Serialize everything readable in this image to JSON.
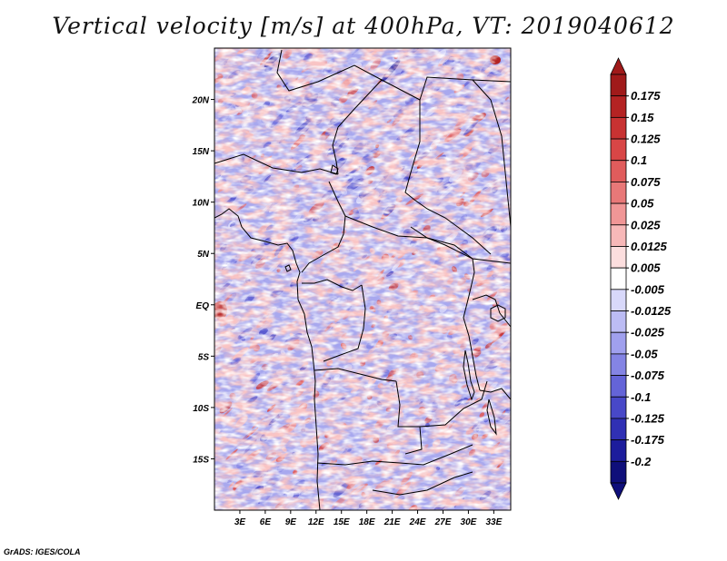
{
  "title": "Vertical velocity [m/s] at 400hPa, VT: 2019040612",
  "credit": "GrADS: IGES/COLA",
  "chart_data": {
    "type": "heatmap",
    "variable": "Vertical velocity",
    "units": "m/s",
    "level": "400hPa",
    "valid_time": "2019040612",
    "lon_range": [
      0,
      35
    ],
    "lat_range": [
      -20,
      25
    ],
    "x_ticks": [
      {
        "value": 3,
        "label": "3E"
      },
      {
        "value": 6,
        "label": "6E"
      },
      {
        "value": 9,
        "label": "9E"
      },
      {
        "value": 12,
        "label": "12E"
      },
      {
        "value": 15,
        "label": "15E"
      },
      {
        "value": 18,
        "label": "18E"
      },
      {
        "value": 21,
        "label": "21E"
      },
      {
        "value": 24,
        "label": "24E"
      },
      {
        "value": 27,
        "label": "27E"
      },
      {
        "value": 30,
        "label": "30E"
      },
      {
        "value": 33,
        "label": "33E"
      }
    ],
    "y_ticks": [
      {
        "value": 20,
        "label": "20N"
      },
      {
        "value": 15,
        "label": "15N"
      },
      {
        "value": 10,
        "label": "10N"
      },
      {
        "value": 5,
        "label": "5N"
      },
      {
        "value": 0,
        "label": "EQ"
      },
      {
        "value": -5,
        "label": "5S"
      },
      {
        "value": -10,
        "label": "10S"
      },
      {
        "value": -15,
        "label": "15S"
      }
    ],
    "colorbar": {
      "labels": [
        "0.175",
        "0.15",
        "0.125",
        "0.1",
        "0.075",
        "0.05",
        "0.025",
        "0.0125",
        "0.005",
        "-0.005",
        "-0.0125",
        "-0.025",
        "-0.05",
        "-0.075",
        "-0.1",
        "-0.125",
        "-0.175",
        "-0.2"
      ],
      "colors": [
        "#a01a1a",
        "#b42323",
        "#c83232",
        "#d84646",
        "#e05c5c",
        "#e87878",
        "#f09696",
        "#f7b8b8",
        "#fcdede",
        "#ffffff",
        "#d8d8fa",
        "#bcbcf4",
        "#a0a0ee",
        "#8484e4",
        "#6464d8",
        "#4848c8",
        "#3030b4",
        "#1c1c9c",
        "#0f0f7a"
      ]
    }
  }
}
